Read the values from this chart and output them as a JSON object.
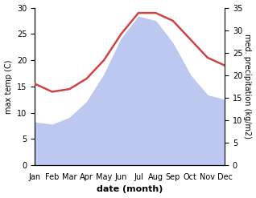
{
  "months": [
    "Jan",
    "Feb",
    "Mar",
    "Apr",
    "May",
    "Jun",
    "Jul",
    "Aug",
    "Sep",
    "Oct",
    "Nov",
    "Dec"
  ],
  "temperature": [
    15.5,
    14.0,
    14.5,
    16.5,
    20.0,
    25.0,
    29.0,
    29.0,
    27.5,
    24.0,
    20.5,
    19.0
  ],
  "precipitation": [
    9.5,
    9.0,
    10.5,
    14.0,
    20.0,
    28.0,
    33.0,
    32.0,
    27.0,
    20.0,
    15.5,
    14.5
  ],
  "temp_color": "#cc4444",
  "precip_fill_color": "#bcc8f0",
  "temp_ylim": [
    0,
    30
  ],
  "precip_ylim": [
    0,
    35
  ],
  "xlabel": "date (month)",
  "ylabel_left": "max temp (C)",
  "ylabel_right": "med. precipitation (kg/m2)",
  "background_color": "#ffffff",
  "tick_label_fontsize": 7,
  "axis_label_fontsize": 7,
  "xlabel_fontsize": 8
}
